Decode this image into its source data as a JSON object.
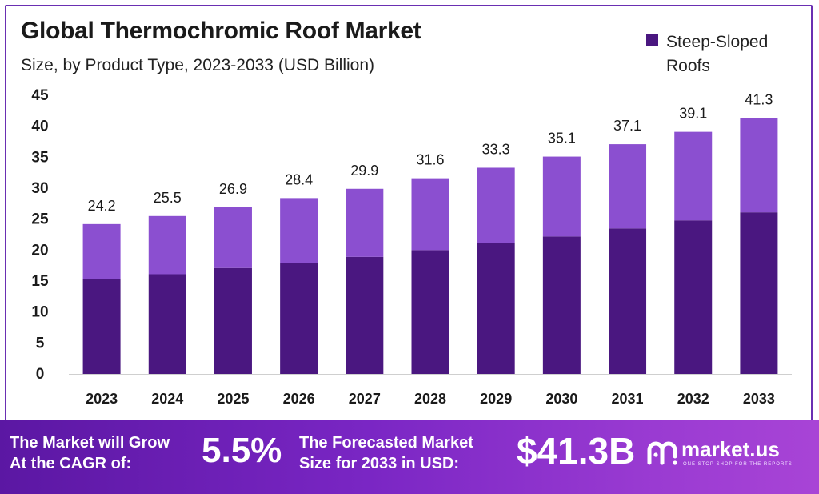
{
  "header": {
    "title": "Global Thermochromic Roof Market",
    "subtitle": "Size, by Product Type, 2023-2033 (USD Billion)"
  },
  "legend": {
    "items": [
      {
        "label": "Steep-Sloped Roofs",
        "color": "#4a1780"
      }
    ]
  },
  "colors": {
    "bottom_segment": "#4a1780",
    "top_segment": "#8b4fd0",
    "accent": "#6a2fb2"
  },
  "chart_data": {
    "type": "bar",
    "stacked": true,
    "categories": [
      "2023",
      "2024",
      "2025",
      "2026",
      "2027",
      "2028",
      "2029",
      "2030",
      "2031",
      "2032",
      "2033"
    ],
    "series": [
      {
        "name": "Steep-Sloped Roofs",
        "values": [
          15.3,
          16.1,
          17.1,
          17.9,
          18.9,
          20.0,
          21.1,
          22.2,
          23.5,
          24.8,
          26.1
        ]
      },
      {
        "values": [
          8.9,
          9.4,
          9.8,
          10.5,
          11.0,
          11.6,
          12.2,
          12.9,
          13.6,
          14.3,
          15.2
        ]
      }
    ],
    "totals": [
      "24.2",
      "25.5",
      "26.9",
      "28.4",
      "29.9",
      "31.6",
      "33.3",
      "35.1",
      "37.1",
      "39.1",
      "41.3"
    ],
    "y_ticks": [
      "0",
      "5",
      "10",
      "15",
      "20",
      "25",
      "30",
      "35",
      "40",
      "45"
    ],
    "ylim": [
      0,
      45
    ],
    "grid": false,
    "legend_position": "top-right"
  },
  "footer": {
    "cagr_label_line1": "The Market will Grow",
    "cagr_label_line2": "At the CAGR of:",
    "cagr_value": "5.5%",
    "forecast_label_line1": "The Forecasted Market",
    "forecast_label_line2": "Size for 2033 in USD:",
    "forecast_value": "$41.3B",
    "brand_name": "market.us",
    "brand_tagline": "ONE STOP SHOP FOR THE REPORTS"
  }
}
